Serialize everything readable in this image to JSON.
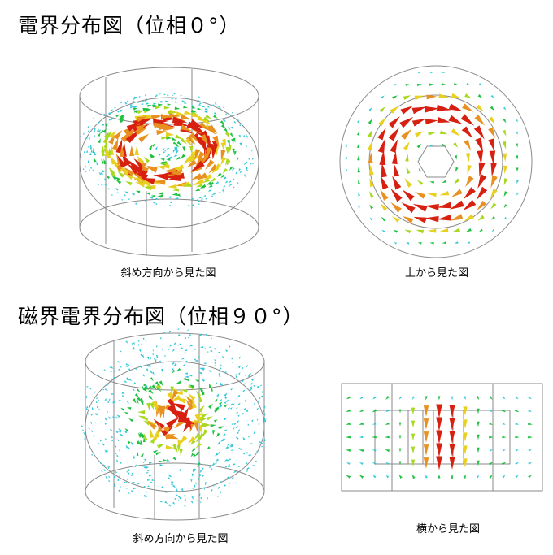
{
  "section1": {
    "title": "電界分布図（位相０°）",
    "oblique_caption": "斜め方向から見た図",
    "top_caption": "上から見た図"
  },
  "section2": {
    "title": "磁界電界分布図（位相９０°）",
    "oblique_caption": "斜め方向から見た図",
    "side_caption": "横から見た図"
  },
  "colors": {
    "outline": "#8a8a8a",
    "magnitude_scale": [
      "#30c8d8",
      "#20c040",
      "#a8d820",
      "#e8d020",
      "#e89020",
      "#d82010"
    ]
  }
}
